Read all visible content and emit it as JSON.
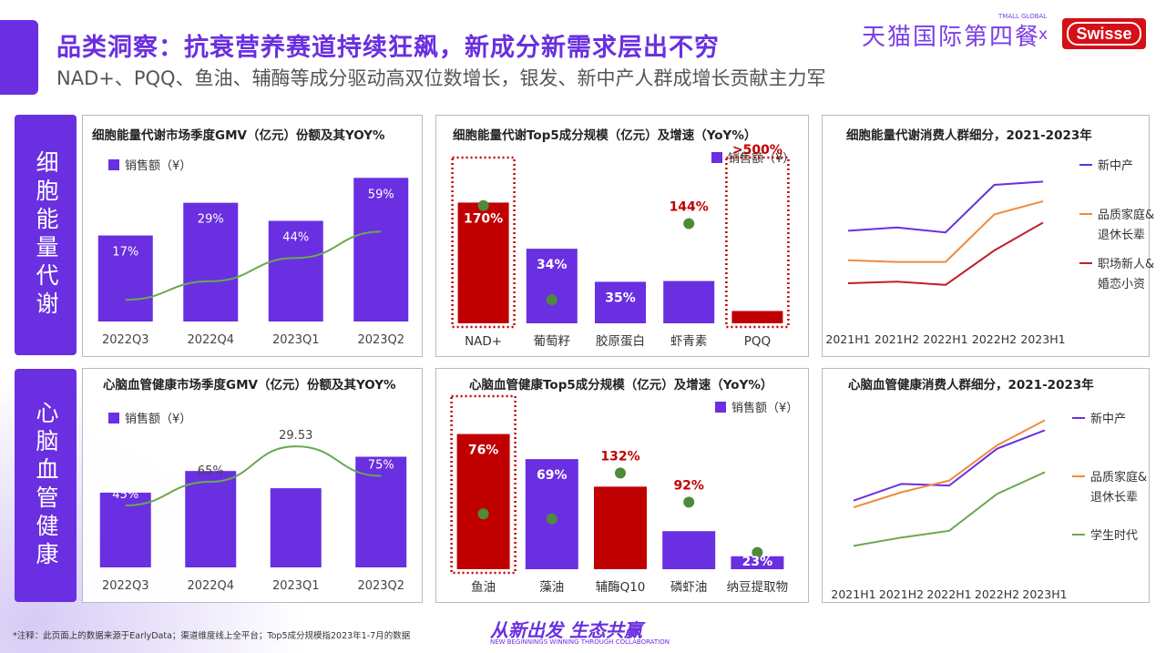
{
  "header": {
    "title": "品类洞察：抗衰营养赛道持续狂飙，新成分新需求层出不穷",
    "subtitle": "NAD+、PQQ、鱼油、辅酶等成分驱动高双位数增长，银发、新中产人群成增长贡献主力军",
    "brand_tmall": "天猫国际第四餐",
    "brand_tmall_small": "TMALL GLOBAL",
    "brand_x": "x",
    "brand_swisse": "Swisse"
  },
  "sections": {
    "top_label": "细胞能量代谢",
    "bottom_label": "心脑血管健康"
  },
  "legend_label": "销售额（¥）",
  "colors": {
    "purple": "#6a2fe0",
    "red": "#c00000",
    "green": "#6aa84f",
    "dot": "#4e8a3a",
    "orange": "#f08a3c",
    "dark_red": "#c0202a"
  },
  "chart_data": [
    {
      "id": "gmv_top",
      "type": "bar",
      "title": "细胞能量代谢市场季度GMV（亿元）份额及其YOY%",
      "legend": "销售额（¥）",
      "categories": [
        "2022Q3",
        "2022Q4",
        "2023Q1",
        "2023Q2"
      ],
      "values": [
        100,
        138,
        117,
        167
      ],
      "yoy_labels": [
        "17%",
        "29%",
        "44%",
        "59%"
      ],
      "trend": [
        14,
        26,
        41,
        58
      ],
      "ylim": [
        0,
        180
      ]
    },
    {
      "id": "top5_top",
      "type": "bar",
      "title": "细胞能量代谢Top5成分规模（亿元）及增速（YoY%）",
      "legend": "销售额（¥）",
      "categories": [
        "NAD+",
        "葡萄籽",
        "胶原蛋白",
        "虾青素",
        "PQQ"
      ],
      "values": [
        157,
        97,
        54,
        55,
        16
      ],
      "bar_colors": [
        "red",
        "purple",
        "purple",
        "purple",
        "red"
      ],
      "yoy_labels": [
        "170%",
        "34%",
        "35%",
        "144%",
        ">500%"
      ],
      "yoy_dots": [
        170,
        34,
        null,
        144,
        null
      ],
      "highlight": [
        true,
        false,
        false,
        false,
        true
      ],
      "ylim": [
        0,
        180
      ]
    },
    {
      "id": "seg_top",
      "type": "line",
      "title": "细胞能量代谢消费人群细分，2021-2023年",
      "categories": [
        "2021 H1",
        "2021 H2",
        "2022H1",
        "2022 H2",
        "2023H1"
      ],
      "series": [
        {
          "name": "新中产",
          "color": "purple",
          "values": [
            52,
            54,
            51,
            80,
            82
          ]
        },
        {
          "name": "品质家庭&\n退休长辈",
          "color": "orange",
          "values": [
            34,
            33,
            33,
            62,
            70
          ]
        },
        {
          "name": "职场新人&\n婚恋小资",
          "color": "dark_red",
          "values": [
            20,
            21,
            19,
            40,
            57
          ]
        }
      ],
      "ylim": [
        0,
        100
      ]
    },
    {
      "id": "gmv_bottom",
      "type": "bar",
      "title": "心脑血管健康市场季度GMV（亿元）份额及其YOY%",
      "legend": "销售额（¥）",
      "categories": [
        "2022Q3",
        "2022Q4",
        "2023Q1",
        "2023Q2"
      ],
      "values": [
        15.2,
        19.6,
        16.1,
        22.5
      ],
      "value_labels": [
        "45%",
        "65%",
        "29.53",
        "75%"
      ],
      "trend": [
        42,
        58,
        82,
        62
      ],
      "ylim": [
        0,
        30
      ]
    },
    {
      "id": "top5_bottom",
      "type": "bar",
      "title": "心脑血管健康Top5成分规模（亿元）及增速（YoY%）",
      "legend": "销售额（¥）",
      "categories": [
        "鱼油",
        "藻油",
        "辅酶Q10",
        "磷虾油",
        "纳豆提取物"
      ],
      "values": [
        167,
        136,
        102,
        47,
        16
      ],
      "bar_colors": [
        "red",
        "purple",
        "red",
        "purple",
        "purple"
      ],
      "yoy_labels": [
        "76%",
        "69%",
        "132%",
        "92%",
        "23%"
      ],
      "yoy_dots": [
        76,
        69,
        132,
        92,
        23
      ],
      "highlight": [
        true,
        false,
        false,
        false,
        false
      ],
      "ylim": [
        0,
        180
      ]
    },
    {
      "id": "seg_bottom",
      "type": "line",
      "title": "心脑血管健康消费人群细分，2021-2023年",
      "categories": [
        "2021 H1",
        "2021 H2",
        "2022H1",
        "2022 H2",
        "2023H1"
      ],
      "series": [
        {
          "name": "新中产",
          "color": "purple",
          "values": [
            42,
            52,
            51,
            73,
            84
          ]
        },
        {
          "name": "品质家庭&\n退休长辈",
          "color": "orange",
          "values": [
            38,
            47,
            54,
            75,
            90
          ]
        },
        {
          "name": "学生时代",
          "color": "green",
          "values": [
            15,
            20,
            24,
            46,
            59
          ]
        }
      ],
      "ylim": [
        0,
        100
      ]
    }
  ],
  "footer": {
    "note": "*注释：此页面上的数据来源于EarlyData；渠道维度线上全平台；Top5成分规模指2023年1-7月的数据",
    "slogan": "从新出发 生态共赢",
    "slogan_en": "NEW BEGINNINGS WINNING THROUGH COLLABORATION"
  }
}
